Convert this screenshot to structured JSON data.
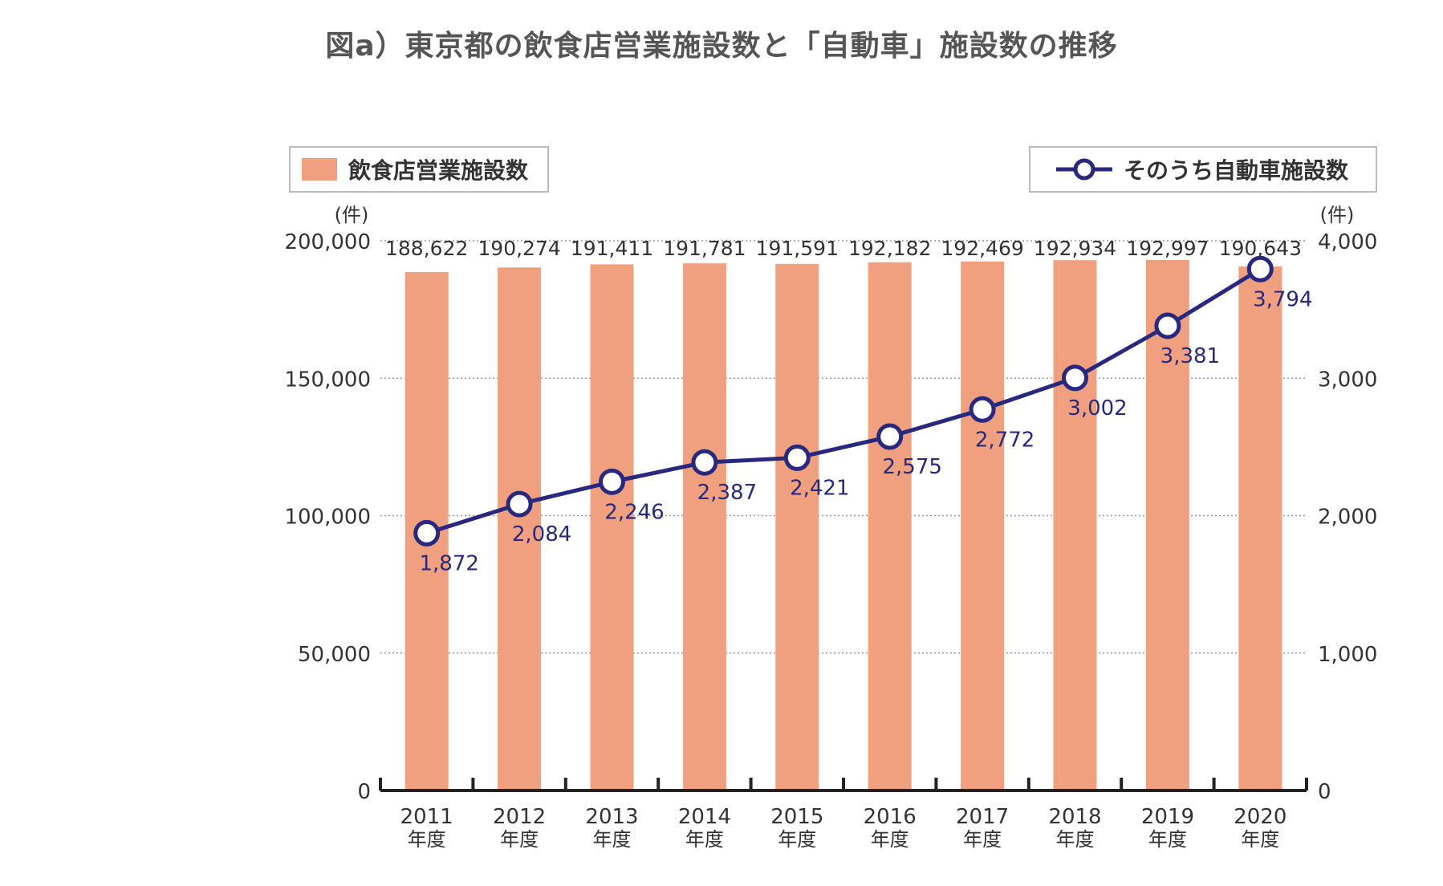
{
  "chart_data": {
    "type": "bar",
    "title": "図a）東京都の飲食店営業施設数と「自動車」施設数の推移",
    "categories": [
      "2011",
      "2012",
      "2013",
      "2014",
      "2015",
      "2016",
      "2017",
      "2018",
      "2019",
      "2020"
    ],
    "category_suffix": "年度",
    "y_left": {
      "unit": "(件)",
      "range": [
        0,
        200000
      ],
      "ticks": [
        0,
        50000,
        100000,
        150000,
        200000
      ],
      "tick_labels": [
        "0",
        "50,000",
        "100,000",
        "150,000",
        "200,000"
      ]
    },
    "y_right": {
      "unit": "(件)",
      "range": [
        0,
        4000
      ],
      "ticks": [
        0,
        1000,
        2000,
        3000,
        4000
      ],
      "tick_labels": [
        "0",
        "1,000",
        "2,000",
        "3,000",
        "4,000"
      ]
    },
    "grid": true,
    "series": [
      {
        "name": "飲食店営業施設数",
        "type": "bar",
        "axis": "left",
        "color": "#f0a07f",
        "values": [
          188622,
          190274,
          191411,
          191781,
          191591,
          192182,
          192469,
          192934,
          192997,
          190643
        ],
        "labels": [
          "188,622",
          "190,274",
          "191,411",
          "191,781",
          "191,591",
          "192,182",
          "192,469",
          "192,934",
          "192,997",
          "190,643"
        ]
      },
      {
        "name": "そのうち自動車施設数",
        "type": "line",
        "axis": "right",
        "color": "#28287f",
        "values": [
          1872,
          2084,
          2246,
          2387,
          2421,
          2575,
          2772,
          3002,
          3381,
          3794
        ],
        "labels": [
          "1,872",
          "2,084",
          "2,246",
          "2,387",
          "2,421",
          "2,575",
          "2,772",
          "3,002",
          "3,381",
          "3,794"
        ]
      }
    ],
    "legend": {
      "bar_label": "飲食店営業施設数",
      "line_label": "そのうち自動車施設数"
    }
  }
}
